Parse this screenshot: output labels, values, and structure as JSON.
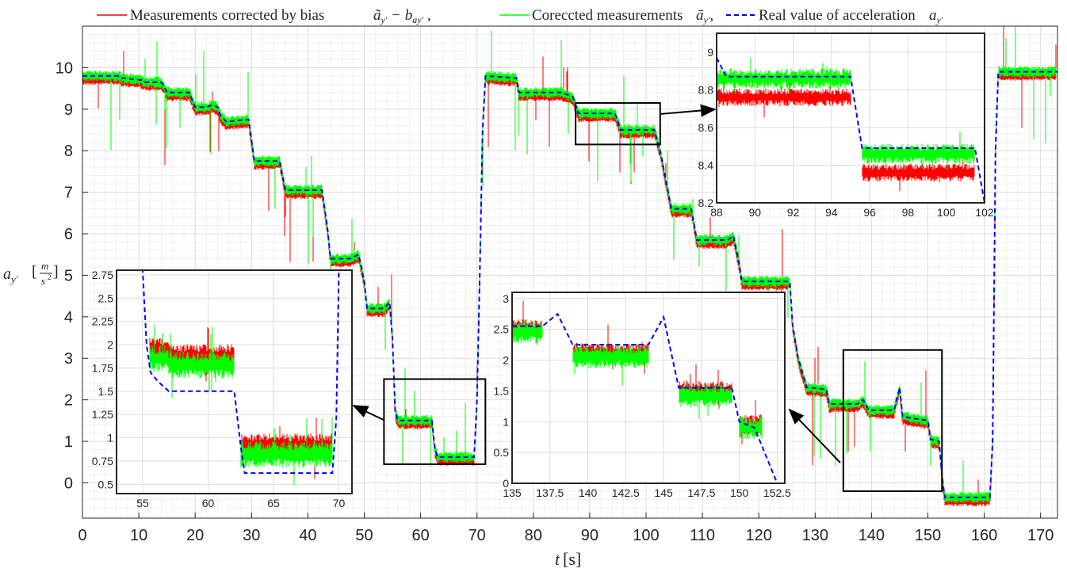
{
  "chart_data": {
    "type": "line",
    "xlabel": "t[s]",
    "ylabel": "a_{y'}[m/s^2]",
    "xlim": [
      0,
      173
    ],
    "ylim": [
      -0.85,
      11.0
    ],
    "xticks": [
      0,
      10,
      20,
      30,
      40,
      50,
      60,
      70,
      80,
      90,
      100,
      110,
      120,
      130,
      140,
      150,
      160,
      170
    ],
    "yticks": [
      0,
      1,
      2,
      3,
      4,
      5,
      6,
      7,
      8,
      9,
      10
    ],
    "grid": true,
    "legend_position": "top",
    "legend": [
      {
        "label": "Measurements corrected by bias ã_{y'} − b_{ay'} ,",
        "color": "#ff0000",
        "style": "solid"
      },
      {
        "label": "Coreccted measurements ā_{y'},",
        "color": "#00ff00",
        "style": "solid"
      },
      {
        "label": "Real value of acceleration a_{y'}",
        "color": "#0000ff",
        "style": "dashed"
      }
    ],
    "series": [
      {
        "name": "Real value of acceleration a_y'",
        "color": "#0000ff",
        "points": [
          [
            0,
            9.8
          ],
          [
            6.5,
            9.8
          ],
          [
            7,
            9.75
          ],
          [
            10.5,
            9.7
          ],
          [
            11,
            9.65
          ],
          [
            14,
            9.65
          ],
          [
            14.5,
            9.55
          ],
          [
            15,
            9.4
          ],
          [
            19,
            9.4
          ],
          [
            19.5,
            9.2
          ],
          [
            20,
            9.05
          ],
          [
            22,
            9.05
          ],
          [
            23,
            9.1
          ],
          [
            24,
            9.05
          ],
          [
            24.5,
            8.85
          ],
          [
            25.5,
            8.7
          ],
          [
            29.5,
            8.75
          ],
          [
            30,
            8.25
          ],
          [
            30.5,
            7.75
          ],
          [
            35,
            7.75
          ],
          [
            35.5,
            7.4
          ],
          [
            36,
            7.05
          ],
          [
            42.5,
            7.05
          ],
          [
            43.5,
            6.1
          ],
          [
            44,
            5.4
          ],
          [
            47.5,
            5.4
          ],
          [
            49,
            5.5
          ],
          [
            49.5,
            5.2
          ],
          [
            50,
            4.85
          ],
          [
            50.5,
            4.2
          ],
          [
            53.5,
            4.2
          ],
          [
            54.5,
            4.35
          ],
          [
            55,
            3.5
          ],
          [
            55.5,
            1.7
          ],
          [
            56,
            1.5
          ],
          [
            62,
            1.5
          ],
          [
            62.5,
            0.85
          ],
          [
            63,
            0.62
          ],
          [
            69.5,
            0.62
          ],
          [
            70,
            2.0
          ],
          [
            70.5,
            5.0
          ],
          [
            71,
            8.5
          ],
          [
            71.5,
            9.8
          ],
          [
            77,
            9.75
          ],
          [
            77.5,
            9.4
          ],
          [
            85,
            9.4
          ],
          [
            87,
            9.3
          ],
          [
            88,
            8.9
          ],
          [
            94.5,
            8.9
          ],
          [
            95.5,
            8.5
          ],
          [
            101.5,
            8.5
          ],
          [
            102.5,
            8.0
          ],
          [
            103.5,
            7.3
          ],
          [
            104.5,
            6.6
          ],
          [
            108,
            6.6
          ],
          [
            108.5,
            6.25
          ],
          [
            109,
            5.85
          ],
          [
            114.5,
            5.85
          ],
          [
            115.5,
            5.95
          ],
          [
            116.5,
            5.3
          ],
          [
            117,
            4.85
          ],
          [
            125.5,
            4.85
          ],
          [
            126,
            3.8
          ],
          [
            127,
            3.0
          ],
          [
            128.5,
            2.3
          ],
          [
            132,
            2.25
          ],
          [
            132.5,
            1.9
          ],
          [
            137.5,
            1.9
          ],
          [
            138.5,
            2.0
          ],
          [
            139.5,
            1.75
          ],
          [
            144,
            1.75
          ],
          [
            145,
            2.3
          ],
          [
            145.5,
            1.6
          ],
          [
            147.5,
            1.55
          ],
          [
            150,
            1.5
          ],
          [
            150.5,
            1.05
          ],
          [
            152,
            1.0
          ],
          [
            152.5,
            0.2
          ],
          [
            153,
            -0.35
          ],
          [
            161,
            -0.35
          ],
          [
            161.5,
            1.0
          ],
          [
            162,
            8.0
          ],
          [
            162.5,
            9.9
          ],
          [
            173,
            9.9
          ]
        ]
      }
    ],
    "insets": [
      {
        "name": "inset-left",
        "xlim": [
          53,
          71
        ],
        "ylim": [
          0.4,
          2.8
        ],
        "xticks": [
          55,
          60,
          65,
          70
        ],
        "yticks": [
          0.5,
          0.75,
          1,
          1.25,
          1.5,
          1.75,
          2,
          2.25,
          2.5,
          2.75
        ],
        "blue": [
          [
            53,
            3.1
          ],
          [
            55,
            2.9
          ],
          [
            55.3,
            2.0
          ],
          [
            55.6,
            1.7
          ],
          [
            56.2,
            1.6
          ],
          [
            57,
            1.5
          ],
          [
            62,
            1.5
          ],
          [
            62.5,
            0.9
          ],
          [
            62.8,
            0.62
          ],
          [
            69.5,
            0.62
          ],
          [
            69.8,
            1.2
          ],
          [
            70,
            2.8
          ]
        ],
        "red_levels": [
          [
            55.5,
            57,
            1.95
          ],
          [
            57,
            62,
            1.88
          ],
          [
            62.5,
            69.5,
            0.92
          ]
        ],
        "green_levels": [
          [
            55.5,
            57,
            1.85
          ],
          [
            57,
            62,
            1.78
          ],
          [
            62.5,
            69.5,
            0.82
          ]
        ]
      },
      {
        "name": "inset-top-right",
        "xlim": [
          88,
          102
        ],
        "ylim": [
          8.2,
          9.1
        ],
        "xticks": [
          88,
          90,
          92,
          94,
          96,
          98,
          100,
          102
        ],
        "yticks": [
          8.2,
          8.4,
          8.6,
          8.8,
          9
        ],
        "blue": [
          [
            88,
            8.97
          ],
          [
            88.5,
            8.87
          ],
          [
            95,
            8.87
          ],
          [
            95.6,
            8.49
          ],
          [
            101.5,
            8.49
          ],
          [
            102,
            8.2
          ]
        ],
        "red_levels": [
          [
            88,
            95,
            8.76
          ],
          [
            95.6,
            101.5,
            8.36
          ]
        ],
        "green_levels": [
          [
            88,
            95,
            8.86
          ],
          [
            95.6,
            101.5,
            8.46
          ]
        ]
      },
      {
        "name": "inset-center",
        "xlim": [
          135,
          153
        ],
        "ylim": [
          0,
          3.1
        ],
        "xticks": [
          135,
          137.5,
          140,
          142.5,
          145,
          147.5,
          150,
          152.5
        ],
        "yticks": [
          0,
          0.5,
          1,
          1.5,
          2,
          2.5,
          3
        ],
        "blue": [
          [
            135,
            2.55
          ],
          [
            137,
            2.55
          ],
          [
            138,
            2.75
          ],
          [
            139,
            2.25
          ],
          [
            144,
            2.25
          ],
          [
            145,
            2.7
          ],
          [
            146,
            1.55
          ],
          [
            149.5,
            1.55
          ],
          [
            150,
            1.0
          ],
          [
            151,
            0.9
          ],
          [
            152,
            0.3
          ],
          [
            152.5,
            0
          ]
        ],
        "red_levels": [
          [
            135,
            137,
            2.5
          ],
          [
            139,
            144,
            2.12
          ],
          [
            146,
            149.5,
            1.5
          ],
          [
            150,
            151.5,
            0.95
          ]
        ],
        "green_levels": [
          [
            135,
            137,
            2.45
          ],
          [
            139,
            144,
            2.05
          ],
          [
            146,
            149.5,
            1.42
          ],
          [
            150,
            151.5,
            0.9
          ]
        ]
      }
    ]
  },
  "labels": {
    "ylabel_main": "a",
    "ylabel_sub": "y'",
    "ylabel_unit_num": "m",
    "ylabel_unit_den": "s",
    "ylabel_unit_exp": "2",
    "xlabel_t": "t",
    "xlabel_unit": "[s]",
    "legend_1": "Measurements corrected by bias ",
    "legend_2": "Coreccted measurements ",
    "legend_3": "Real value of acceleration "
  }
}
